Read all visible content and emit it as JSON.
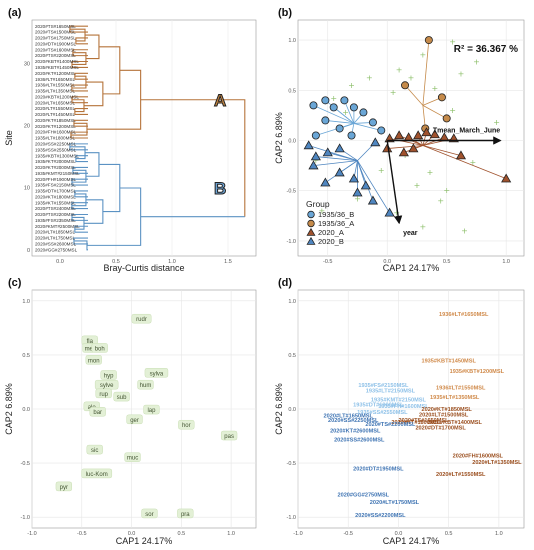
{
  "figure": {
    "panels": [
      "(a)",
      "(b)",
      "(c)",
      "(d)"
    ]
  },
  "chart_data": [
    {
      "panel": "(a)",
      "type": "dendrogram",
      "xlabel": "Bray-Curtis distance",
      "ylabel": "Site",
      "xticks": [
        0.0,
        0.5,
        1.0,
        1.5
      ],
      "yticks": [
        0,
        10,
        20,
        30
      ],
      "xlim": [
        -0.25,
        1.75
      ],
      "ylim": [
        -1,
        37
      ],
      "leaves": [
        "2020#TS#1650MSL",
        "2020#TS#1500MSL",
        "2020#TS#1750MSL",
        "2020#DT#1900MSL",
        "2020#TS#1600MSL",
        "2020#TS#2200MSL",
        "2020#KBT#1400MSL",
        "1935#KBT#1450MSL",
        "2020#KT#1200MSL",
        "1936#LT#1650MSL",
        "1936#LT#1550MSL",
        "1935#LT#1350MSL",
        "2020#KBT#1200MSL",
        "2020#LT#1650MSL",
        "2020#LT#1550MSL",
        "2020#LT#1450MSL",
        "2020#KT#1850MSL",
        "2020#KT#1200MSL",
        "2020#FH#1600MSL",
        "1935#LT#1800MSL",
        "2020#SS#2250MSL",
        "1935#SS#2550MSL",
        "1935#KBT#1300MSL",
        "1935#KT#2000MSL",
        "2020#KT#2000MSL",
        "1935#KMT#2150MSL",
        "2020#FH#1900MSL",
        "1935#FS#2150MSL",
        "1935#DT#1700MSL",
        "2020#KT#1800MSL",
        "1935#KT#1550MSL",
        "2020#TS#2400MSL",
        "2020#TS#2200MSL",
        "1935#FS#2350MSL",
        "2020#KMT#2500MSL",
        "2020#LT#1850MSL",
        "2020#LT#1750MSL",
        "2020#SS#2600MSL",
        "2020#GG#2750MSL"
      ],
      "clusters": [
        {
          "name": "A",
          "color": "#b5733a",
          "leaf_range": [
            0,
            19
          ]
        },
        {
          "name": "B",
          "color": "#5b92c3",
          "leaf_range": [
            20,
            38
          ]
        }
      ]
    },
    {
      "panel": "(b)",
      "type": "scatter",
      "xlabel": "CAP1 24.17%",
      "ylabel": "CAP2 6.89%",
      "xticks": [
        -0.5,
        0.0,
        0.5,
        1.0
      ],
      "yticks": [
        -1.0,
        -0.5,
        0.0,
        0.5,
        1.0
      ],
      "xlim": [
        -0.75,
        1.15
      ],
      "ylim": [
        -1.15,
        1.2
      ],
      "annotation": "R² = 36.367 %",
      "vectors": [
        {
          "name": "Tmean_March_June",
          "x": 0.95,
          "y": 0.0
        },
        {
          "name": "year",
          "x": 0.1,
          "y": -0.82
        }
      ],
      "legend_title": "Group",
      "series": [
        {
          "name": "1935/36_B",
          "marker": "circle",
          "color": "#6aa6d6",
          "centroid": [
            -0.28,
            0.17
          ],
          "x": [
            -0.62,
            -0.52,
            -0.45,
            -0.36,
            -0.28,
            -0.2,
            -0.52,
            -0.4,
            -0.12,
            -0.6,
            -0.3,
            -0.05
          ],
          "y": [
            0.35,
            0.4,
            0.33,
            0.4,
            0.33,
            0.28,
            0.2,
            0.12,
            0.18,
            0.05,
            0.05,
            0.1
          ]
        },
        {
          "name": "1935/36_A",
          "marker": "circle",
          "color": "#c58a4a",
          "centroid": [
            0.3,
            0.35
          ],
          "x": [
            0.35,
            0.15,
            0.46,
            0.5,
            0.32
          ],
          "y": [
            1.0,
            0.55,
            0.43,
            0.22,
            0.12
          ]
        },
        {
          "name": "2020_A",
          "marker": "triangle",
          "color": "#a0522d",
          "centroid": [
            0.3,
            -0.05
          ],
          "x": [
            0.02,
            0.1,
            0.18,
            0.26,
            0.33,
            0.4,
            0.48,
            0.56,
            0.22,
            0.14,
            0.0,
            0.62,
            1.0
          ],
          "y": [
            0.02,
            0.05,
            0.03,
            0.05,
            0.08,
            0.06,
            0.03,
            0.02,
            -0.08,
            -0.12,
            -0.08,
            -0.15,
            -0.38
          ]
        },
        {
          "name": "2020_B",
          "marker": "triangle",
          "color": "#4f86c0",
          "centroid": [
            -0.25,
            -0.2
          ],
          "x": [
            -0.66,
            -0.6,
            -0.5,
            -0.4,
            -0.1,
            -0.52,
            -0.25,
            -0.18,
            -0.62,
            -0.4,
            -0.28,
            -0.12,
            0.02
          ],
          "y": [
            -0.05,
            -0.16,
            -0.12,
            -0.08,
            -0.02,
            -0.42,
            -0.52,
            -0.45,
            -0.25,
            -0.32,
            -0.38,
            -0.6,
            -0.72
          ]
        }
      ],
      "species_marks": {
        "x": [
          -0.3,
          0.1,
          0.3,
          0.55,
          0.75,
          -0.45,
          0.05,
          0.2,
          0.4,
          0.62,
          -0.6,
          -0.05,
          0.15,
          0.36,
          0.5,
          0.72,
          0.92,
          -0.25,
          0.08,
          0.3,
          0.45,
          -0.55,
          -0.15,
          0.55,
          0.25,
          0.65,
          -0.35
        ],
        "y": [
          0.55,
          0.7,
          0.85,
          0.98,
          0.78,
          0.42,
          0.48,
          0.62,
          0.52,
          0.66,
          -0.2,
          -0.3,
          -0.15,
          -0.32,
          -0.5,
          -0.22,
          0.18,
          -0.58,
          -0.72,
          -0.86,
          -0.6,
          -0.7,
          0.62,
          0.3,
          -0.45,
          -0.9,
          0.28
        ]
      }
    },
    {
      "panel": "(c)",
      "type": "scatter",
      "xlabel": "CAP1 24.17%",
      "ylabel": "CAP2 6.89%",
      "xticks": [
        -1.0,
        -0.5,
        0.0,
        0.5,
        1.0
      ],
      "yticks": [
        -1.0,
        -0.5,
        0.0,
        0.5,
        1.0
      ],
      "xlim": [
        -1.0,
        1.25
      ],
      "ylim": [
        -1.1,
        1.1
      ],
      "points": [
        {
          "label": "rudr",
          "x": 0.1,
          "y": 0.83
        },
        {
          "label": "fla",
          "x": -0.42,
          "y": 0.63
        },
        {
          "label": "me",
          "x": -0.43,
          "y": 0.56
        },
        {
          "label": "boh",
          "x": -0.32,
          "y": 0.56
        },
        {
          "label": "mon",
          "x": -0.38,
          "y": 0.45
        },
        {
          "label": "hyp",
          "x": -0.23,
          "y": 0.31
        },
        {
          "label": "sylva",
          "x": 0.25,
          "y": 0.33
        },
        {
          "label": "sylve",
          "x": -0.25,
          "y": 0.22
        },
        {
          "label": "hum",
          "x": 0.14,
          "y": 0.22
        },
        {
          "label": "rup",
          "x": -0.28,
          "y": 0.14
        },
        {
          "label": "sub",
          "x": -0.1,
          "y": 0.11
        },
        {
          "label": "alo",
          "x": -0.4,
          "y": 0.02
        },
        {
          "label": "bar",
          "x": -0.34,
          "y": -0.03
        },
        {
          "label": "lap",
          "x": 0.2,
          "y": -0.01
        },
        {
          "label": "ger",
          "x": 0.03,
          "y": -0.1
        },
        {
          "label": "hor",
          "x": 0.55,
          "y": -0.15
        },
        {
          "label": "pas",
          "x": 0.98,
          "y": -0.25
        },
        {
          "label": "sic",
          "x": -0.37,
          "y": -0.38
        },
        {
          "label": "muc",
          "x": 0.01,
          "y": -0.45
        },
        {
          "label": "luc-Kom",
          "x": -0.35,
          "y": -0.6
        },
        {
          "label": "pyr",
          "x": -0.68,
          "y": -0.72
        },
        {
          "label": "sor",
          "x": 0.18,
          "y": -0.97
        },
        {
          "label": "pra",
          "x": 0.54,
          "y": -0.97
        }
      ]
    },
    {
      "panel": "(d)",
      "type": "scatter",
      "xlabel": "CAP1 24.17%",
      "ylabel": "CAP2 6.89%",
      "xticks": [
        -1.0,
        -0.5,
        0.0,
        0.5,
        1.0
      ],
      "yticks": [
        -1.0,
        -0.5,
        0.0,
        0.5,
        1.0
      ],
      "xlim": [
        -1.0,
        1.25
      ],
      "ylim": [
        -1.1,
        1.1
      ],
      "points": [
        {
          "label": "1936#LT#1650MSL",
          "x": 0.65,
          "y": 0.88,
          "group": "1935/36_A"
        },
        {
          "label": "1935#KBT#1450MSL",
          "x": 0.5,
          "y": 0.45,
          "group": "1935/36_A"
        },
        {
          "label": "1935#KBT#1200MSL",
          "x": 0.78,
          "y": 0.35,
          "group": "1935/36_A"
        },
        {
          "label": "1936#LT#1550MSL",
          "x": 0.62,
          "y": 0.2,
          "group": "1935/36_A"
        },
        {
          "label": "1935#LT#1350MSL",
          "x": 0.56,
          "y": 0.11,
          "group": "1935/36_A"
        },
        {
          "label": "1935#FS#2150MSL",
          "x": -0.15,
          "y": 0.22,
          "group": "1935/36_B"
        },
        {
          "label": "1935#LT#2150MSL",
          "x": -0.08,
          "y": 0.17,
          "group": "1935/36_B"
        },
        {
          "label": "1935#KMT#2150MSL",
          "x": 0.0,
          "y": 0.09,
          "group": "1935/36_B"
        },
        {
          "label": "1935#DT#1900MSL",
          "x": -0.2,
          "y": 0.04,
          "group": "1935/36_B"
        },
        {
          "label": "1935#FH#1600MSL",
          "x": 0.05,
          "y": 0.03,
          "group": "1935/36_B"
        },
        {
          "label": "1935#SS#2550MSL",
          "x": -0.16,
          "y": -0.03,
          "group": "1935/36_B"
        },
        {
          "label": "2020#KT#1850MSL",
          "x": 0.48,
          "y": 0.0,
          "group": "2020_A"
        },
        {
          "label": "2020#LT#1500MSL",
          "x": 0.45,
          "y": -0.05,
          "group": "2020_A"
        },
        {
          "label": "2020#KBT#1400MSL",
          "x": 0.56,
          "y": -0.12,
          "group": "2020_A"
        },
        {
          "label": "2020#TS#1650MSL",
          "x": 0.25,
          "y": -0.1,
          "group": "2020_A"
        },
        {
          "label": "2020#DT#1700MSL",
          "x": 0.42,
          "y": -0.17,
          "group": "2020_A"
        },
        {
          "label": "2020#KT#1800MSL",
          "x": 0.18,
          "y": -0.12,
          "group": "2020_A"
        },
        {
          "label": "2020#FH#1600MSL",
          "x": 0.79,
          "y": -0.43,
          "group": "2020_A"
        },
        {
          "label": "2020#LT#1350MSL",
          "x": 0.98,
          "y": -0.49,
          "group": "2020_A"
        },
        {
          "label": "2020#LT#1550MSL",
          "x": 0.62,
          "y": -0.6,
          "group": "2020_A"
        },
        {
          "label": "2020#LT#1650MSL",
          "x": -0.5,
          "y": -0.06,
          "group": "2020_B"
        },
        {
          "label": "2020#SS#2250MSL",
          "x": -0.45,
          "y": -0.1,
          "group": "2020_B"
        },
        {
          "label": "2020#TS#2200MSL",
          "x": -0.08,
          "y": -0.14,
          "group": "2020_B"
        },
        {
          "label": "2020#KT#2600MSL",
          "x": -0.43,
          "y": -0.2,
          "group": "2020_B"
        },
        {
          "label": "2020#SS#2600MSL",
          "x": -0.39,
          "y": -0.28,
          "group": "2020_B"
        },
        {
          "label": "2020#DT#1950MSL",
          "x": -0.2,
          "y": -0.55,
          "group": "2020_B"
        },
        {
          "label": "2020#GG#2750MSL",
          "x": -0.35,
          "y": -0.79,
          "group": "2020_B"
        },
        {
          "label": "2020#LT#1750MSL",
          "x": -0.04,
          "y": -0.86,
          "group": "2020_B"
        },
        {
          "label": "2020#SS#2200MSL",
          "x": -0.18,
          "y": -0.98,
          "group": "2020_B"
        }
      ],
      "group_colors": {
        "1935/36_A": "#d08a4a",
        "1935/36_B": "#8ec1e8",
        "2020_A": "#9b4f1f",
        "2020_B": "#3f74b3"
      }
    }
  ]
}
